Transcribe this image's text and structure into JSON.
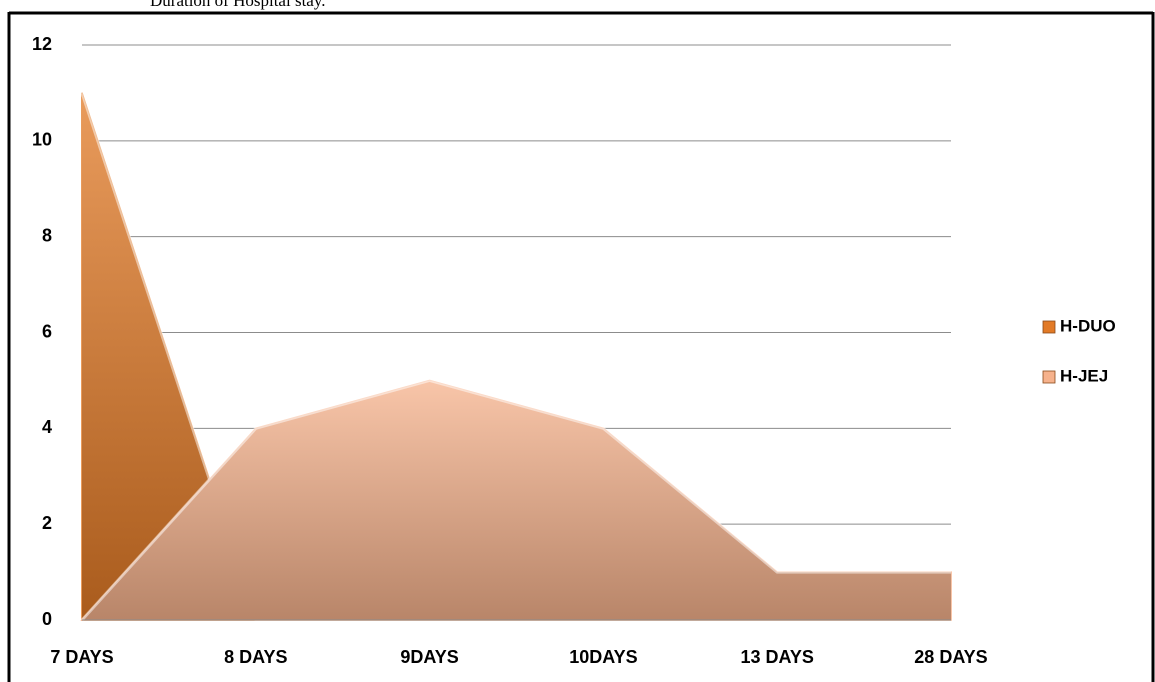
{
  "chart_data": {
    "type": "area",
    "caption": "Duration of Hospital stay.",
    "categories": [
      "7 DAYS",
      "8 DAYS",
      "9DAYS",
      "10DAYS",
      "13 DAYS",
      "28 DAYS"
    ],
    "series": [
      {
        "name": "H-DUO",
        "color": "#e27a26",
        "values": [
          11,
          0,
          0,
          0,
          0,
          0
        ]
      },
      {
        "name": "H-JEJ",
        "color": "#f6b28c",
        "values": [
          0,
          4,
          5,
          4,
          1,
          1
        ]
      }
    ],
    "ylim": [
      0,
      12
    ],
    "yticks": [
      0,
      2,
      4,
      6,
      8,
      10,
      12
    ],
    "grid": true,
    "legend": "right"
  }
}
